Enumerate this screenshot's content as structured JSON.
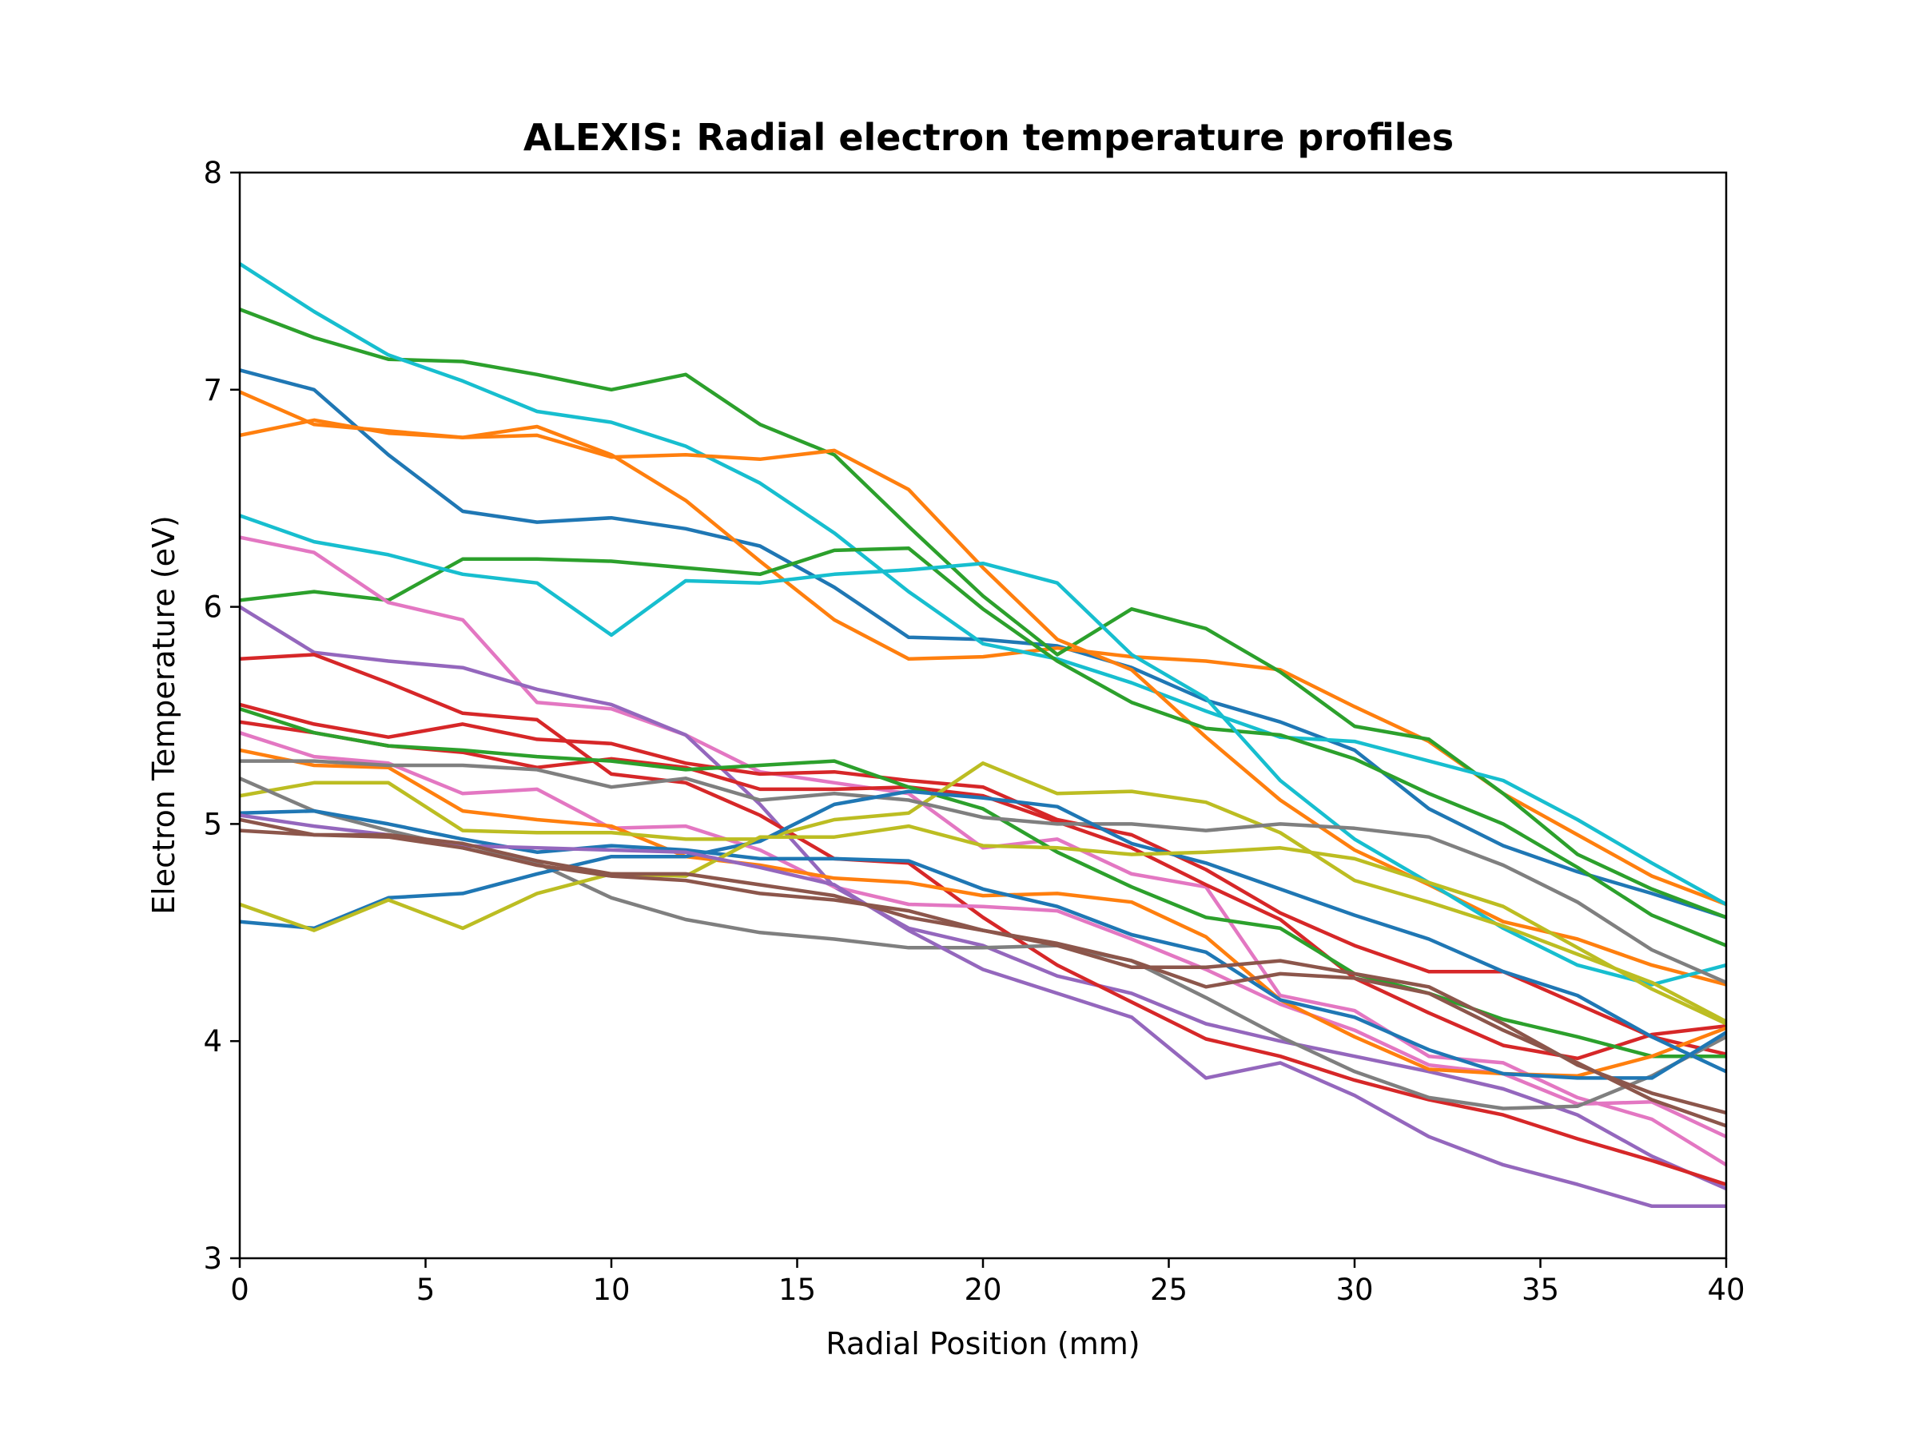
{
  "chart_data": {
    "type": "line",
    "title": "ALEXIS: Radial electron temperature profiles",
    "xlabel": "Radial Position (mm)",
    "ylabel": "Electron Temperature (eV)",
    "xlim": [
      0,
      40
    ],
    "ylim": [
      3,
      8
    ],
    "xticks": [
      "0",
      "5",
      "10",
      "15",
      "20",
      "25",
      "30",
      "35",
      "40"
    ],
    "yticks": [
      "3",
      "4",
      "5",
      "6",
      "7",
      "8"
    ],
    "grid": false,
    "legend": "none",
    "x": [
      0,
      2,
      4,
      6,
      8,
      10,
      12,
      14,
      16,
      18,
      20,
      22,
      24,
      26,
      28,
      30,
      32,
      34,
      36,
      38,
      40
    ],
    "series": [
      {
        "color": "#1f77b4",
        "values": [
          7.09,
          7.0,
          6.7,
          6.44,
          6.39,
          6.41,
          6.36,
          6.28,
          6.09,
          5.86,
          5.85,
          5.82,
          5.72,
          5.57,
          5.47,
          5.34,
          5.07,
          4.9,
          4.78,
          4.68,
          4.57
        ]
      },
      {
        "color": "#ff7f0e",
        "values": [
          6.99,
          6.84,
          6.81,
          6.78,
          6.83,
          6.7,
          6.49,
          6.21,
          5.94,
          5.76,
          5.77,
          5.81,
          5.77,
          5.75,
          5.71,
          5.54,
          5.38,
          5.14,
          4.95,
          4.76,
          4.63
        ]
      },
      {
        "color": "#2ca02c",
        "values": [
          7.37,
          7.24,
          7.14,
          7.13,
          7.07,
          7.0,
          7.07,
          6.84,
          6.7,
          6.37,
          6.05,
          5.78,
          5.99,
          5.9,
          5.7,
          5.45,
          5.39,
          5.14,
          4.86,
          4.7,
          4.57
        ]
      },
      {
        "color": "#17becf",
        "values": [
          7.58,
          7.36,
          7.16,
          7.04,
          6.9,
          6.85,
          6.74,
          6.57,
          6.34,
          6.07,
          5.83,
          5.76,
          5.65,
          5.52,
          5.4,
          5.38,
          5.29,
          5.2,
          5.02,
          4.82,
          4.63
        ]
      },
      {
        "color": "#ff7f0e",
        "values": [
          6.79,
          6.86,
          6.8,
          6.78,
          6.79,
          6.69,
          6.7,
          6.68,
          6.72,
          6.54,
          6.18,
          5.85,
          5.71,
          5.4,
          5.11,
          4.88,
          4.72,
          4.55,
          4.47,
          4.35,
          4.26
        ]
      },
      {
        "color": "#2ca02c",
        "values": [
          6.03,
          6.07,
          6.03,
          6.22,
          6.22,
          6.21,
          6.18,
          6.15,
          6.26,
          6.27,
          5.99,
          5.75,
          5.56,
          5.44,
          5.41,
          5.3,
          5.14,
          5.0,
          4.8,
          4.58,
          4.44
        ]
      },
      {
        "color": "#17becf",
        "values": [
          6.42,
          6.3,
          6.24,
          6.15,
          6.11,
          5.87,
          6.12,
          6.11,
          6.15,
          6.17,
          6.2,
          6.11,
          5.78,
          5.58,
          5.2,
          4.93,
          4.73,
          4.52,
          4.35,
          4.26,
          4.35
        ]
      },
      {
        "color": "#e377c2",
        "values": [
          6.32,
          6.25,
          6.02,
          5.94,
          5.56,
          5.53,
          5.41,
          5.24,
          5.19,
          5.14,
          4.89,
          4.93,
          4.77,
          4.71,
          4.21,
          4.14,
          3.93,
          3.9,
          3.74,
          3.64,
          3.43
        ]
      },
      {
        "color": "#9467bd",
        "values": [
          6.0,
          5.79,
          5.75,
          5.72,
          5.62,
          5.55,
          5.41,
          5.09,
          4.71,
          4.52,
          4.44,
          4.3,
          4.22,
          4.08,
          4.0,
          3.93,
          3.86,
          3.78,
          3.66,
          3.47,
          3.32
        ]
      },
      {
        "color": "#d62728",
        "values": [
          5.76,
          5.78,
          5.65,
          5.51,
          5.48,
          5.23,
          5.19,
          5.04,
          4.84,
          4.82,
          4.57,
          4.35,
          4.18,
          4.01,
          3.93,
          3.82,
          3.73,
          3.66,
          3.55,
          3.45,
          3.34
        ]
      },
      {
        "color": "#d62728",
        "values": [
          5.55,
          5.46,
          5.4,
          5.46,
          5.39,
          5.37,
          5.28,
          5.23,
          5.24,
          5.2,
          5.17,
          5.02,
          4.95,
          4.79,
          4.59,
          4.44,
          4.32,
          4.32,
          4.17,
          4.02,
          3.94
        ]
      },
      {
        "color": "#d62728",
        "values": [
          5.47,
          5.42,
          5.36,
          5.33,
          5.26,
          5.3,
          5.26,
          5.16,
          5.16,
          5.17,
          5.13,
          5.01,
          4.89,
          4.72,
          4.56,
          4.29,
          4.13,
          3.98,
          3.92,
          4.03,
          4.07
        ]
      },
      {
        "color": "#2ca02c",
        "values": [
          5.53,
          5.42,
          5.36,
          5.34,
          5.31,
          5.29,
          5.25,
          5.27,
          5.29,
          5.17,
          5.07,
          4.87,
          4.71,
          4.57,
          4.52,
          4.31,
          4.22,
          4.1,
          4.02,
          3.93,
          3.93
        ]
      },
      {
        "color": "#e377c2",
        "values": [
          5.42,
          5.31,
          5.28,
          5.14,
          5.16,
          4.98,
          4.99,
          4.88,
          4.71,
          4.63,
          4.62,
          4.6,
          4.47,
          4.33,
          4.17,
          4.05,
          3.89,
          3.85,
          3.71,
          3.72,
          3.56
        ]
      },
      {
        "color": "#ff7f0e",
        "values": [
          5.34,
          5.27,
          5.26,
          5.06,
          5.02,
          4.99,
          4.85,
          4.81,
          4.75,
          4.73,
          4.67,
          4.68,
          4.64,
          4.48,
          4.19,
          4.02,
          3.87,
          3.85,
          3.84,
          3.93,
          4.06
        ]
      },
      {
        "color": "#bcbd22",
        "values": [
          5.13,
          5.19,
          5.19,
          4.97,
          4.96,
          4.96,
          4.93,
          4.93,
          5.02,
          5.05,
          5.28,
          5.14,
          5.15,
          5.1,
          4.96,
          4.74,
          4.64,
          4.53,
          4.4,
          4.27,
          4.09
        ]
      },
      {
        "color": "#7f7f7f",
        "values": [
          5.29,
          5.29,
          5.27,
          5.27,
          5.25,
          5.17,
          5.21,
          5.11,
          5.14,
          5.11,
          5.03,
          5.0,
          5.0,
          4.97,
          5.0,
          4.98,
          4.94,
          4.81,
          4.64,
          4.42,
          4.27
        ]
      },
      {
        "color": "#7f7f7f",
        "values": [
          5.21,
          5.06,
          4.97,
          4.89,
          4.82,
          4.66,
          4.56,
          4.5,
          4.47,
          4.43,
          4.43,
          4.44,
          4.37,
          4.2,
          4.02,
          3.86,
          3.74,
          3.69,
          3.7,
          3.84,
          4.02
        ]
      },
      {
        "color": "#1f77b4",
        "values": [
          5.05,
          5.06,
          5.0,
          4.93,
          4.87,
          4.9,
          4.88,
          4.84,
          4.84,
          4.83,
          4.7,
          4.62,
          4.49,
          4.41,
          4.19,
          4.11,
          3.96,
          3.85,
          3.83,
          3.83,
          4.04
        ]
      },
      {
        "color": "#1f77b4",
        "values": [
          4.55,
          4.52,
          4.66,
          4.68,
          4.77,
          4.85,
          4.85,
          4.92,
          5.09,
          5.15,
          5.12,
          5.08,
          4.91,
          4.82,
          4.7,
          4.58,
          4.47,
          4.32,
          4.21,
          4.02,
          3.86
        ]
      },
      {
        "color": "#bcbd22",
        "values": [
          4.63,
          4.51,
          4.65,
          4.52,
          4.68,
          4.77,
          4.76,
          4.94,
          4.94,
          4.99,
          4.9,
          4.89,
          4.86,
          4.87,
          4.89,
          4.84,
          4.73,
          4.62,
          4.43,
          4.24,
          4.08
        ]
      },
      {
        "color": "#9467bd",
        "values": [
          5.04,
          4.99,
          4.95,
          4.9,
          4.89,
          4.88,
          4.87,
          4.8,
          4.72,
          4.51,
          4.33,
          4.22,
          4.11,
          3.83,
          3.9,
          3.75,
          3.56,
          3.43,
          3.34,
          3.24,
          3.24
        ]
      },
      {
        "color": "#8c564b",
        "values": [
          5.02,
          4.95,
          4.95,
          4.91,
          4.83,
          4.77,
          4.77,
          4.72,
          4.67,
          4.57,
          4.51,
          4.44,
          4.34,
          4.34,
          4.37,
          4.31,
          4.25,
          4.08,
          3.89,
          3.76,
          3.67
        ]
      },
      {
        "color": "#8c564b",
        "values": [
          4.97,
          4.95,
          4.94,
          4.89,
          4.81,
          4.76,
          4.74,
          4.68,
          4.65,
          4.6,
          4.51,
          4.45,
          4.37,
          4.25,
          4.31,
          4.29,
          4.22,
          4.05,
          3.9,
          3.73,
          3.61
        ]
      }
    ]
  }
}
